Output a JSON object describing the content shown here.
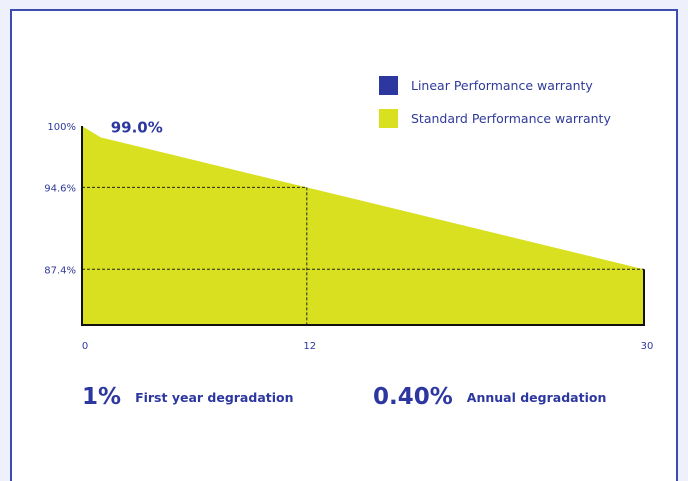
{
  "colors": {
    "background": "#eef1fb",
    "card_border": "#3b4bb0",
    "text": "#2f3a99",
    "standard_fill": "#d8e020",
    "linear_swatch": "#2d37a0",
    "axis": "#111111",
    "guide": "#222222"
  },
  "legend": {
    "items": [
      {
        "label": "Linear Performance warranty",
        "color": "#2d37a0"
      },
      {
        "label": "Standard Performance warranty",
        "color": "#d8e020"
      }
    ]
  },
  "stats": {
    "first_year": {
      "value": "1%",
      "label": "First year degradation"
    },
    "annual": {
      "value": "0.40%",
      "label": "Annual degradation"
    }
  },
  "chart_data": {
    "type": "area",
    "x": [
      0,
      1,
      12,
      30
    ],
    "series": [
      {
        "name": "Standard Performance warranty",
        "values": [
          100,
          99.0,
          94.6,
          87.4
        ]
      }
    ],
    "xlim": [
      0,
      30
    ],
    "ylim": [
      82.5,
      100
    ],
    "y_ticks": [
      {
        "value": 100,
        "label": "100%"
      },
      {
        "value": 94.6,
        "label": "94.6%"
      },
      {
        "value": 87.4,
        "label": "87.4%"
      }
    ],
    "x_ticks": [
      {
        "value": 0,
        "label": "0"
      },
      {
        "value": 12,
        "label": "12"
      },
      {
        "value": 30,
        "label": "30"
      }
    ],
    "annotations": [
      {
        "x": 1,
        "y": 99.0,
        "label": "99.0%"
      }
    ],
    "guides": [
      {
        "x": 12,
        "y": 94.6
      },
      {
        "x": 30,
        "y": 87.4
      }
    ],
    "title": "",
    "xlabel": "",
    "ylabel": "",
    "grid": false,
    "legend_position": "top-right"
  }
}
